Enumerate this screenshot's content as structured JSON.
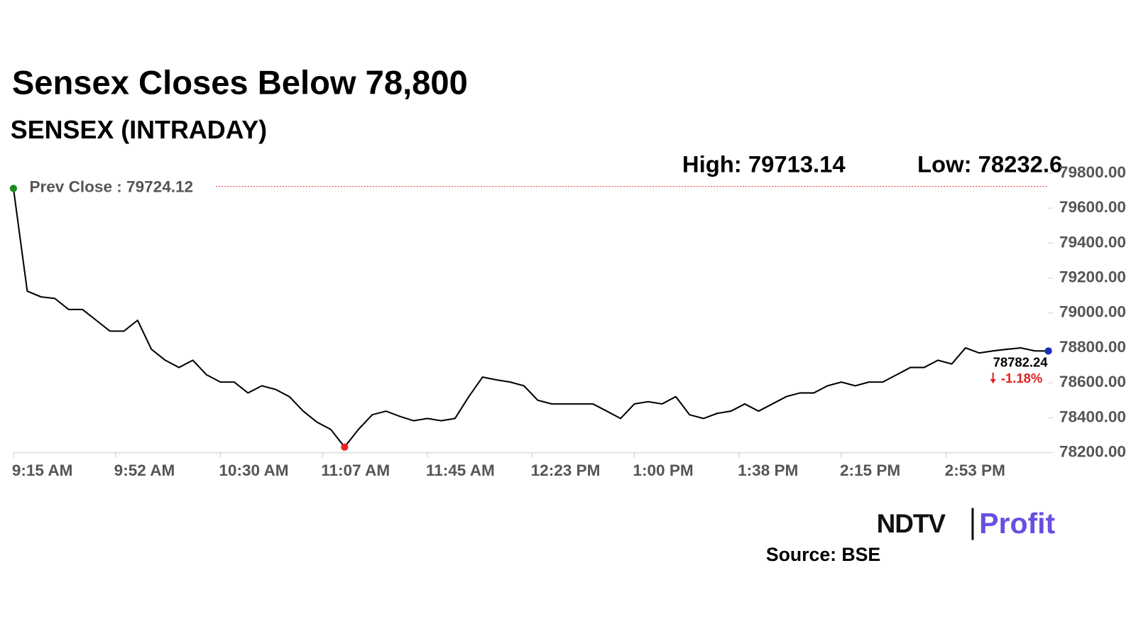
{
  "chart_data": {
    "type": "line",
    "title": "Sensex Closes Below 78,800",
    "subtitle": "SENSEX (INTRADAY)",
    "high": {
      "label": "High:",
      "value": 79713.14
    },
    "low": {
      "label": "Low:",
      "value": 78232.6
    },
    "prev_close": {
      "label": "Prev Close :",
      "value": 79724.12
    },
    "last": 78782.24,
    "change": "-1.18%",
    "x": [
      "9:15 AM",
      "9:20 AM",
      "9:25 AM",
      "9:30 AM",
      "9:35 AM",
      "9:40 AM",
      "9:45 AM",
      "9:50 AM",
      "9:55 AM",
      "10:00 AM",
      "10:05 AM",
      "10:10 AM",
      "10:15 AM",
      "10:20 AM",
      "10:25 AM",
      "10:30 AM",
      "10:35 AM",
      "10:40 AM",
      "10:45 AM",
      "10:50 AM",
      "10:55 AM",
      "11:00 AM",
      "11:05 AM",
      "11:10 AM",
      "11:15 AM",
      "11:20 AM",
      "11:25 AM",
      "11:30 AM",
      "11:35 AM",
      "11:40 AM",
      "11:45 AM",
      "11:50 AM",
      "11:55 AM",
      "12:00 PM",
      "12:05 PM",
      "12:10 PM",
      "12:15 PM",
      "12:20 PM",
      "12:25 PM",
      "12:30 PM",
      "12:35 PM",
      "12:40 PM",
      "12:45 PM",
      "12:50 PM",
      "12:55 PM",
      "1:00 PM",
      "1:05 PM",
      "1:10 PM",
      "1:15 PM",
      "1:20 PM",
      "1:25 PM",
      "1:30 PM",
      "1:35 PM",
      "1:40 PM",
      "1:45 PM",
      "1:50 PM",
      "1:55 PM",
      "2:00 PM",
      "2:05 PM",
      "2:10 PM",
      "2:15 PM",
      "2:20 PM",
      "2:25 PM",
      "2:30 PM",
      "2:35 PM",
      "2:40 PM",
      "2:45 PM",
      "2:50 PM",
      "2:55 PM",
      "3:00 PM",
      "3:05 PM",
      "3:10 PM",
      "3:15 PM",
      "3:20 PM",
      "3:25 PM",
      "3:30 PM"
    ],
    "series": [
      {
        "name": "SENSEX",
        "color": "#000000",
        "values": [
          79713.14,
          79125,
          79092,
          79083,
          79020,
          79020,
          78958,
          78896,
          78896,
          78958,
          78792,
          78729,
          78688,
          78729,
          78646,
          78604,
          78604,
          78542,
          78583,
          78562,
          78521,
          78438,
          78375,
          78333,
          78232.6,
          78333,
          78417,
          78438,
          78408,
          78383,
          78396,
          78383,
          78396,
          78521,
          78633,
          78617,
          78604,
          78583,
          78500,
          78479,
          78479,
          78479,
          78479,
          78438,
          78396,
          78479,
          78492,
          78479,
          78521,
          78417,
          78396,
          78425,
          78438,
          78479,
          78438,
          78479,
          78521,
          78542,
          78542,
          78583,
          78604,
          78583,
          78604,
          78604,
          78646,
          78688,
          78688,
          78729,
          78708,
          78800,
          78771,
          78783,
          78792,
          78800,
          78783,
          78782.24
        ]
      }
    ],
    "xlim": [
      "9:15 AM",
      "3:30 PM"
    ],
    "xticks": [
      "9:15 AM",
      "9:52 AM",
      "10:30 AM",
      "11:07 AM",
      "11:45 AM",
      "12:23 PM",
      "1:00 PM",
      "1:38 PM",
      "2:15 PM",
      "2:53 PM"
    ],
    "ylim": [
      78200,
      79800
    ],
    "yticks": [
      {
        "value": 78200,
        "label": "78200.00"
      },
      {
        "value": 78400,
        "label": "78400.00"
      },
      {
        "value": 78600,
        "label": "78600.00"
      },
      {
        "value": 78800,
        "label": "78800.00"
      },
      {
        "value": 79000,
        "label": "79000.00"
      },
      {
        "value": 79200,
        "label": "79200.00"
      },
      {
        "value": 79400,
        "label": "79400.00"
      },
      {
        "value": 79600,
        "label": "79600.00"
      },
      {
        "value": 79800,
        "label": "79800.00"
      }
    ],
    "grid": false
  },
  "logo": {
    "brand": "NDTV",
    "product": "Profit"
  },
  "source": "Source: BSE"
}
